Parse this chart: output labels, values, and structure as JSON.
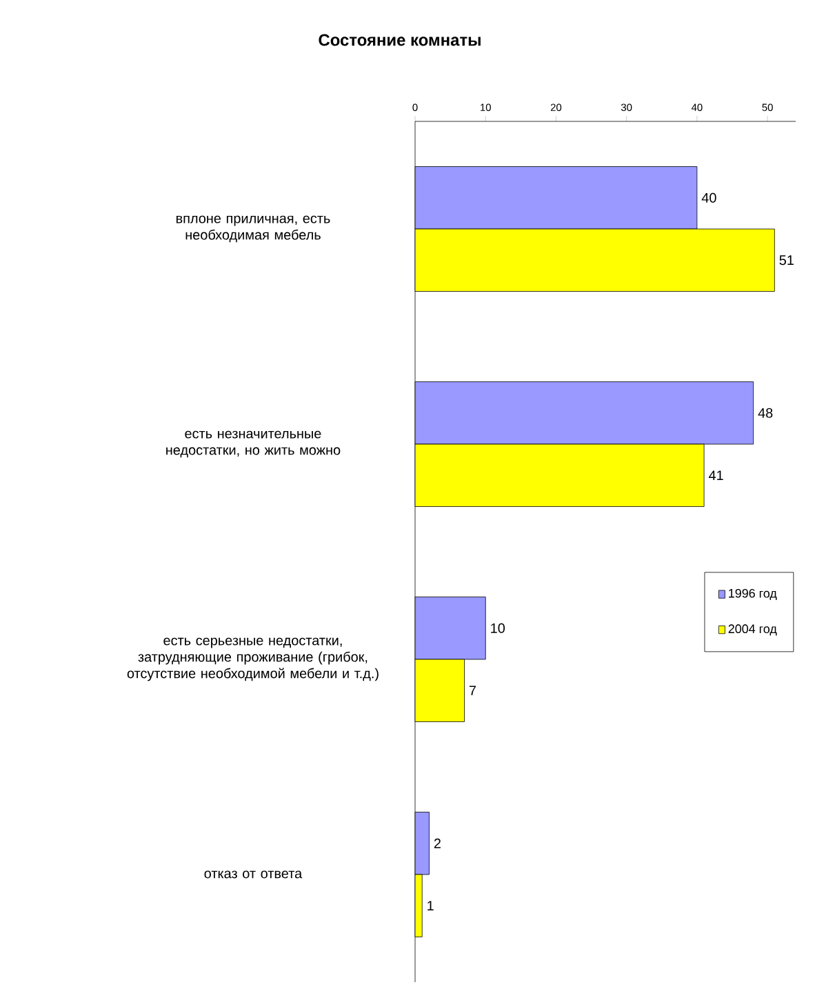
{
  "chart_data": {
    "type": "bar",
    "orientation": "horizontal",
    "title": "Состояние комнаты",
    "categories": [
      "вплоне приличная, есть необходимая мебель",
      "есть незначительные недостатки, но жить можно",
      "есть серьезные недостатки, затрудняющие проживание (грибок, отсутствие необходимой мебели и т.д.)",
      "отказ от ответа"
    ],
    "series": [
      {
        "name": "1996 год",
        "color": "#9999ff",
        "values": [
          40,
          48,
          10,
          2
        ]
      },
      {
        "name": "2004 год",
        "color": "#ffff00",
        "values": [
          51,
          41,
          7,
          1
        ]
      }
    ],
    "xlim": [
      0,
      54
    ],
    "xticks": [
      0,
      10,
      20,
      30,
      40,
      50
    ],
    "data_labels": true,
    "legend": "right",
    "grid": false
  }
}
